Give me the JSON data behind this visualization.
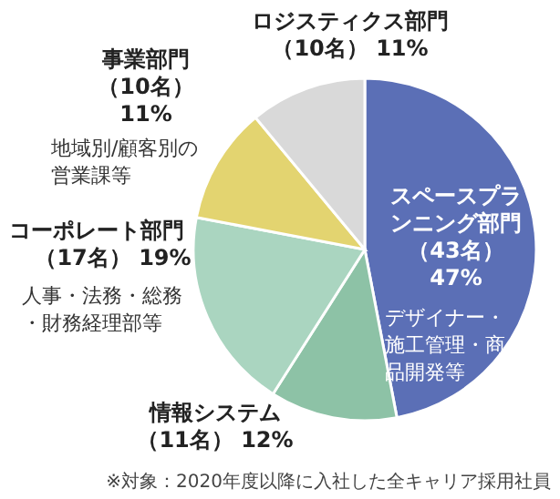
{
  "chart_data": {
    "type": "pie",
    "categories": [
      "スペースプランニング部門",
      "情報システム",
      "コーポレート部門",
      "事業部門",
      "ロジスティクス部門"
    ],
    "values": [
      47,
      12,
      19,
      11,
      11
    ],
    "colors": [
      "#5b6fb6",
      "#8dc2a6",
      "#aad5c0",
      "#e3d470",
      "#d9d9d9"
    ],
    "value_labels": [
      "（43名） 47%",
      "（11名） 12%",
      "（17名） 19%",
      "（10名） 11%",
      "（10名） 11%"
    ],
    "annotations": [
      "デザイナー・施工管理・商品開発等",
      "人事・法務・総務・財務経理部等",
      "地域別/顧客別の営業課等",
      "※対象：2020年度以降に入社した全キャリア採用社員"
    ]
  }
}
